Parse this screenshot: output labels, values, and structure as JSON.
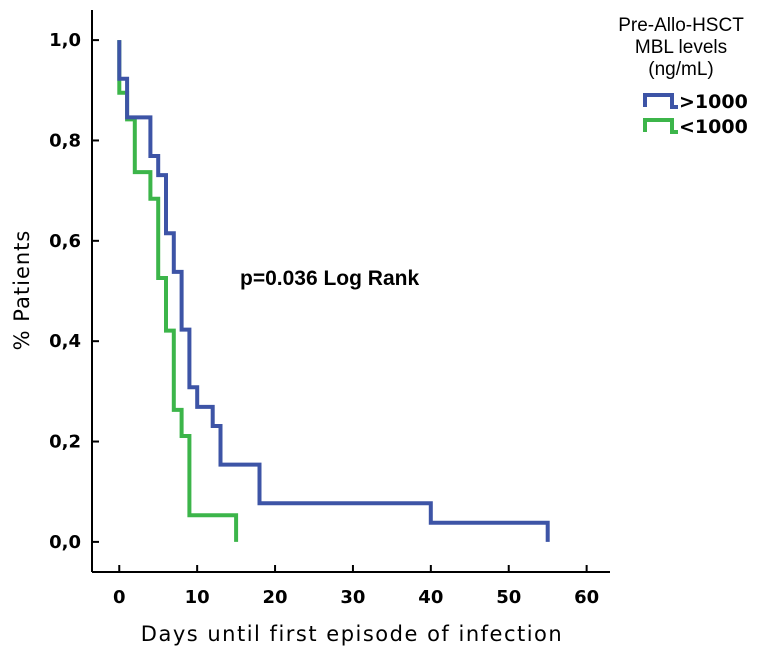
{
  "chart_data": {
    "type": "line",
    "subtype": "kaplan-meier-step",
    "title": "",
    "xlabel": "Days until first episode of infection",
    "ylabel": "% Patients",
    "xlim": [
      -3.5,
      63
    ],
    "ylim": [
      -0.06,
      1.06
    ],
    "x_ticks": [
      0,
      10,
      20,
      30,
      40,
      50,
      60
    ],
    "x_tick_labels": [
      "0",
      "10",
      "20",
      "30",
      "40",
      "50",
      "60"
    ],
    "y_ticks": [
      0,
      0.2,
      0.4,
      0.6,
      0.8,
      1.0
    ],
    "y_tick_labels": [
      "0,0",
      "0,2",
      "0,4",
      "0,6",
      "0,8",
      "1,0"
    ],
    "grid": false,
    "annotation": "p=0.036 Log Rank",
    "legend": {
      "position": "top-right",
      "title_lines": [
        "Pre-Allo-HSCT",
        "MBL levels",
        "(ng/mL)"
      ]
    },
    "series": [
      {
        "name": ">1000",
        "color": "#3d54a6",
        "points": [
          [
            0,
            1.0
          ],
          [
            0,
            0.923
          ],
          [
            1,
            0.923
          ],
          [
            1,
            0.846
          ],
          [
            4,
            0.846
          ],
          [
            4,
            0.769
          ],
          [
            5,
            0.769
          ],
          [
            5,
            0.731
          ],
          [
            6,
            0.731
          ],
          [
            6,
            0.615
          ],
          [
            7,
            0.615
          ],
          [
            7,
            0.538
          ],
          [
            8,
            0.538
          ],
          [
            8,
            0.423
          ],
          [
            9,
            0.423
          ],
          [
            9,
            0.308
          ],
          [
            10,
            0.308
          ],
          [
            10,
            0.269
          ],
          [
            12,
            0.269
          ],
          [
            12,
            0.231
          ],
          [
            13,
            0.231
          ],
          [
            13,
            0.154
          ],
          [
            18,
            0.154
          ],
          [
            18,
            0.077
          ],
          [
            40,
            0.077
          ],
          [
            40,
            0.038
          ],
          [
            55,
            0.038
          ],
          [
            55,
            0.0
          ]
        ]
      },
      {
        "name": "<1000",
        "color": "#3cb54a",
        "points": [
          [
            0,
            1.0
          ],
          [
            0,
            0.895
          ],
          [
            1,
            0.895
          ],
          [
            1,
            0.842
          ],
          [
            2,
            0.842
          ],
          [
            2,
            0.737
          ],
          [
            4,
            0.737
          ],
          [
            4,
            0.684
          ],
          [
            5,
            0.684
          ],
          [
            5,
            0.526
          ],
          [
            6,
            0.526
          ],
          [
            6,
            0.421
          ],
          [
            7,
            0.421
          ],
          [
            7,
            0.263
          ],
          [
            8,
            0.263
          ],
          [
            8,
            0.211
          ],
          [
            9,
            0.211
          ],
          [
            9,
            0.053
          ],
          [
            15,
            0.053
          ],
          [
            15,
            0.0
          ]
        ]
      }
    ]
  }
}
